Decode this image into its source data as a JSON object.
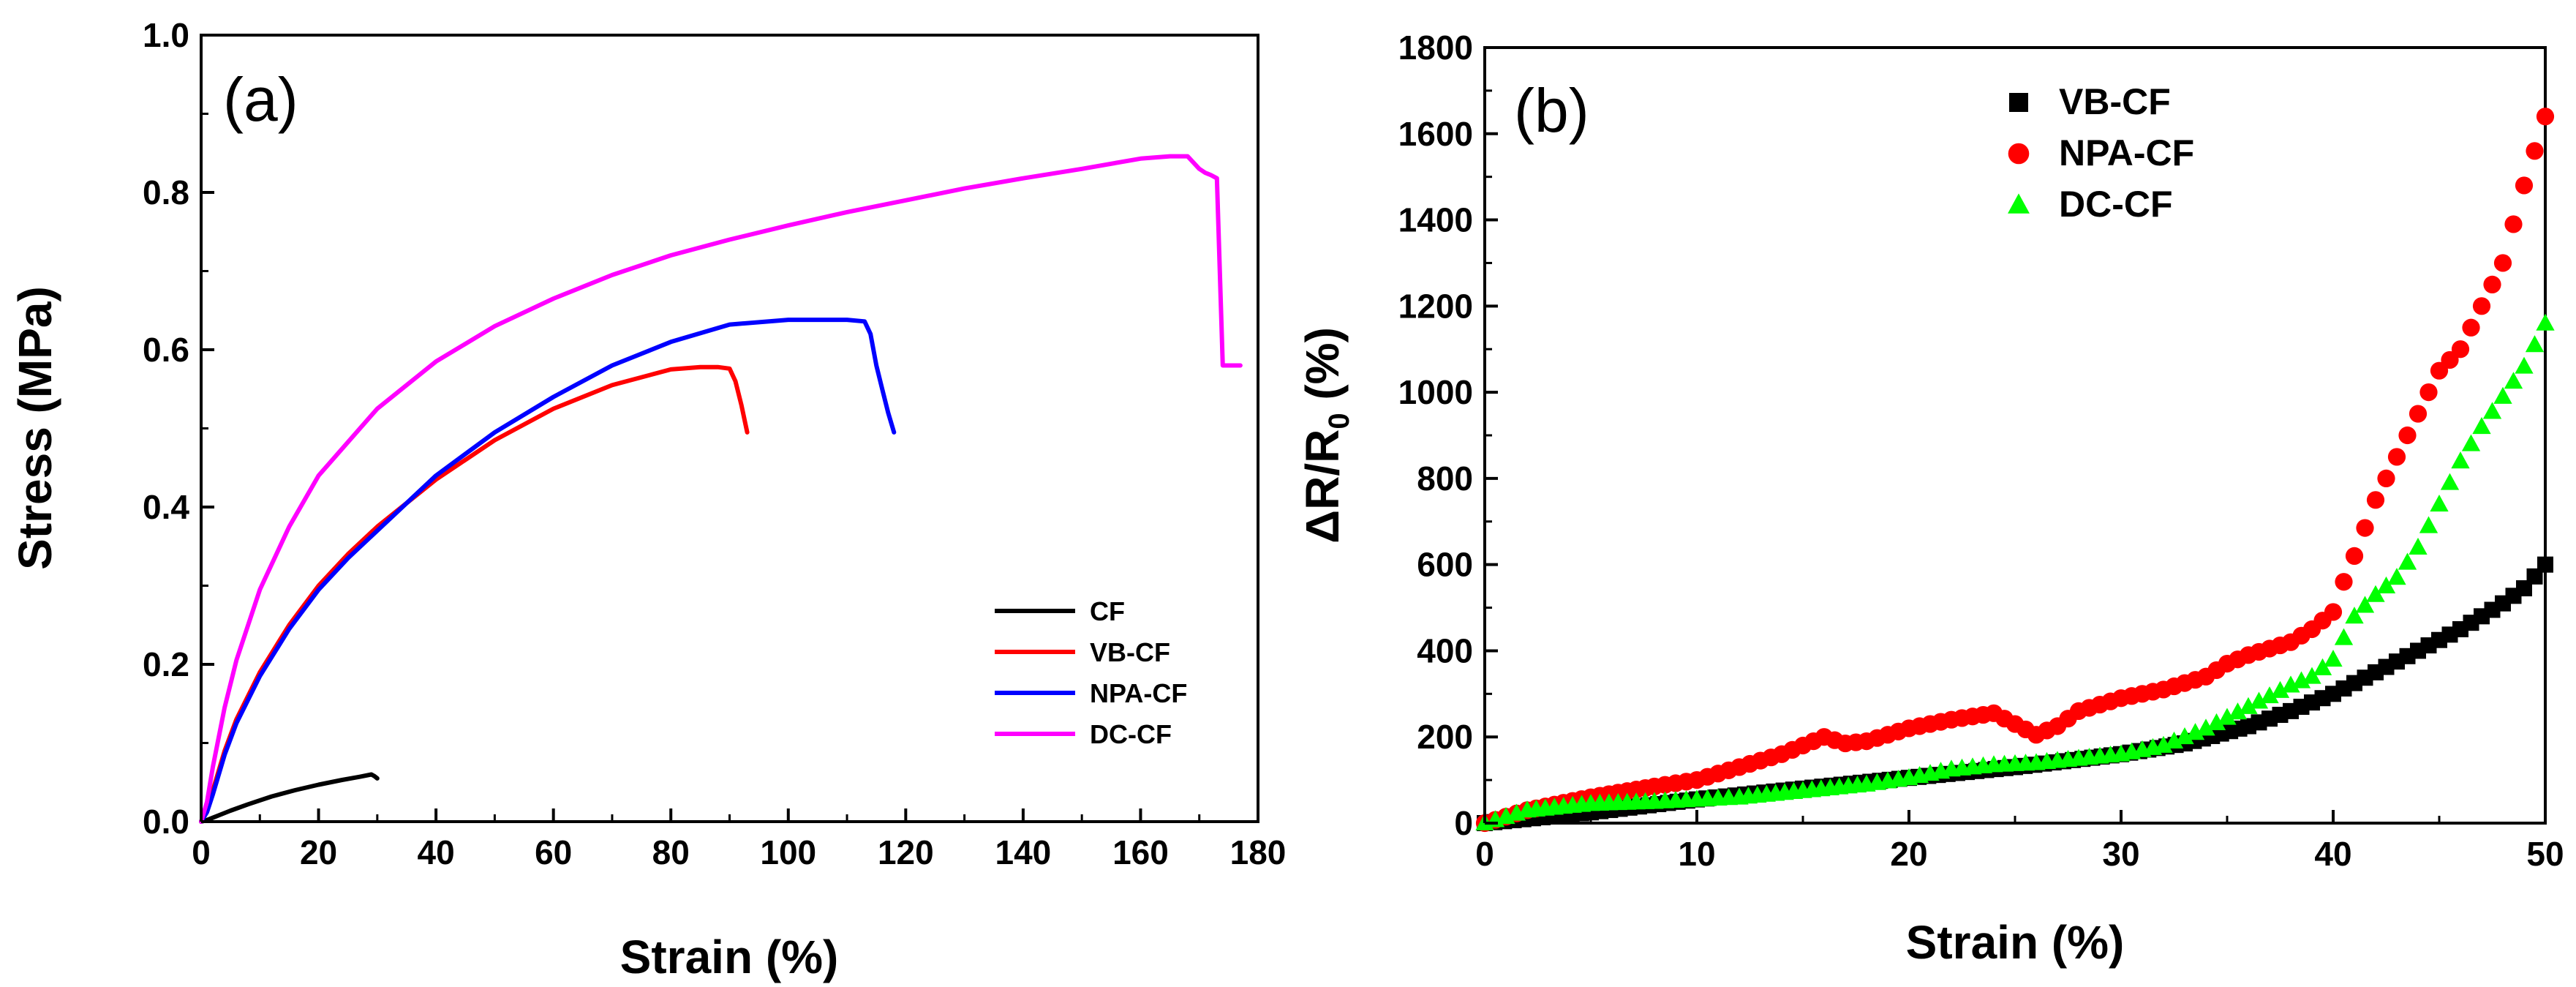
{
  "chart_data": [
    {
      "type": "line",
      "panel_label": "(a)",
      "xlabel": "Strain (%)",
      "ylabel": "Stress (MPa)",
      "xlim": [
        0,
        180
      ],
      "ylim": [
        0,
        1.0
      ],
      "xticks": [
        "0",
        "20",
        "40",
        "60",
        "80",
        "100",
        "120",
        "140",
        "160",
        "180"
      ],
      "yticks": [
        "0.0",
        "0.2",
        "0.4",
        "0.6",
        "0.8",
        "1.0"
      ],
      "legend_position": "bottom-right",
      "series": [
        {
          "name": "CF",
          "color": "#000000",
          "x": [
            0,
            1,
            2,
            3,
            5,
            8,
            12,
            16,
            20,
            24,
            27,
            29,
            29.5,
            30
          ],
          "y": [
            0,
            0.002,
            0.005,
            0.008,
            0.014,
            0.022,
            0.032,
            0.04,
            0.047,
            0.053,
            0.057,
            0.06,
            0.058,
            0.055
          ]
        },
        {
          "name": "VB-CF",
          "color": "#ff0000",
          "x": [
            0,
            1,
            2,
            4,
            6,
            10,
            15,
            20,
            25,
            30,
            40,
            50,
            60,
            70,
            80,
            85,
            88,
            90,
            91,
            92,
            93
          ],
          "y": [
            0,
            0.015,
            0.04,
            0.09,
            0.13,
            0.19,
            0.25,
            0.3,
            0.34,
            0.375,
            0.435,
            0.485,
            0.525,
            0.555,
            0.575,
            0.578,
            0.578,
            0.576,
            0.56,
            0.53,
            0.495
          ]
        },
        {
          "name": "NPA-CF",
          "color": "#0000ff",
          "x": [
            0,
            1,
            2,
            4,
            6,
            10,
            15,
            20,
            25,
            30,
            40,
            50,
            60,
            70,
            80,
            90,
            100,
            105,
            110,
            113,
            114,
            115,
            116,
            117,
            118
          ],
          "y": [
            0,
            0.012,
            0.035,
            0.085,
            0.125,
            0.185,
            0.245,
            0.295,
            0.335,
            0.37,
            0.44,
            0.495,
            0.54,
            0.58,
            0.61,
            0.632,
            0.638,
            0.638,
            0.638,
            0.636,
            0.62,
            0.58,
            0.55,
            0.52,
            0.495
          ]
        },
        {
          "name": "DC-CF",
          "color": "#ff00ff",
          "x": [
            0,
            1,
            2,
            4,
            6,
            10,
            15,
            20,
            30,
            40,
            50,
            60,
            70,
            80,
            90,
            100,
            110,
            120,
            130,
            140,
            150,
            160,
            165,
            168,
            170,
            171,
            172,
            173,
            174,
            176,
            177
          ],
          "y": [
            0,
            0.025,
            0.07,
            0.145,
            0.205,
            0.295,
            0.375,
            0.44,
            0.525,
            0.585,
            0.63,
            0.665,
            0.695,
            0.72,
            0.74,
            0.758,
            0.775,
            0.79,
            0.805,
            0.818,
            0.83,
            0.843,
            0.846,
            0.846,
            0.83,
            0.825,
            0.822,
            0.818,
            0.58,
            0.58,
            0.58
          ]
        }
      ]
    },
    {
      "type": "scatter",
      "panel_label": "(b)",
      "xlabel": "Strain (%)",
      "ylabel_main": "ΔR/R",
      "ylabel_sub": "0",
      "ylabel_tail": " (%)",
      "xlim": [
        0,
        50
      ],
      "ylim": [
        0,
        1800
      ],
      "xticks": [
        "0",
        "10",
        "20",
        "30",
        "40",
        "50"
      ],
      "yticks": [
        "0",
        "200",
        "400",
        "600",
        "800",
        "1000",
        "1200",
        "1400",
        "1600",
        "1800"
      ],
      "legend_position": "top-center",
      "series": [
        {
          "name": "VB-CF",
          "color": "#000000",
          "marker": "square",
          "x": [
            0,
            5,
            10,
            15,
            20,
            25,
            30,
            33,
            36,
            38,
            40,
            42,
            44,
            46,
            48,
            49,
            50
          ],
          "y": [
            0,
            25,
            55,
            80,
            105,
            130,
            160,
            185,
            225,
            260,
            300,
            350,
            400,
            450,
            510,
            545,
            600
          ]
        },
        {
          "name": "NPA-CF",
          "color": "#ff0000",
          "marker": "circle",
          "x": [
            0,
            2,
            5,
            8,
            10,
            12,
            14,
            15,
            16,
            17,
            18,
            20,
            22,
            24,
            25,
            26,
            27,
            28,
            30,
            32,
            34,
            35,
            36,
            38,
            39,
            40,
            40.5,
            41,
            42,
            43,
            44,
            45,
            46,
            47,
            48,
            49,
            50
          ],
          "y": [
            0,
            30,
            60,
            85,
            100,
            130,
            160,
            180,
            200,
            185,
            190,
            220,
            240,
            255,
            230,
            205,
            225,
            260,
            290,
            310,
            340,
            370,
            390,
            420,
            450,
            490,
            560,
            620,
            750,
            850,
            950,
            1050,
            1100,
            1200,
            1300,
            1480,
            1640
          ]
        },
        {
          "name": "DC-CF",
          "color": "#00ff00",
          "marker": "triangle",
          "x": [
            0,
            2,
            5,
            8,
            10,
            12,
            15,
            18,
            20,
            22,
            24,
            26,
            28,
            30,
            32,
            34,
            36,
            38,
            39,
            40,
            41,
            42,
            43,
            44,
            45,
            46,
            47,
            48,
            49,
            50
          ],
          "y": [
            0,
            30,
            45,
            50,
            55,
            60,
            75,
            90,
            105,
            125,
            135,
            140,
            150,
            160,
            180,
            220,
            270,
            320,
            340,
            380,
            480,
            530,
            570,
            640,
            740,
            840,
            920,
            990,
            1060,
            1160
          ]
        }
      ]
    }
  ]
}
